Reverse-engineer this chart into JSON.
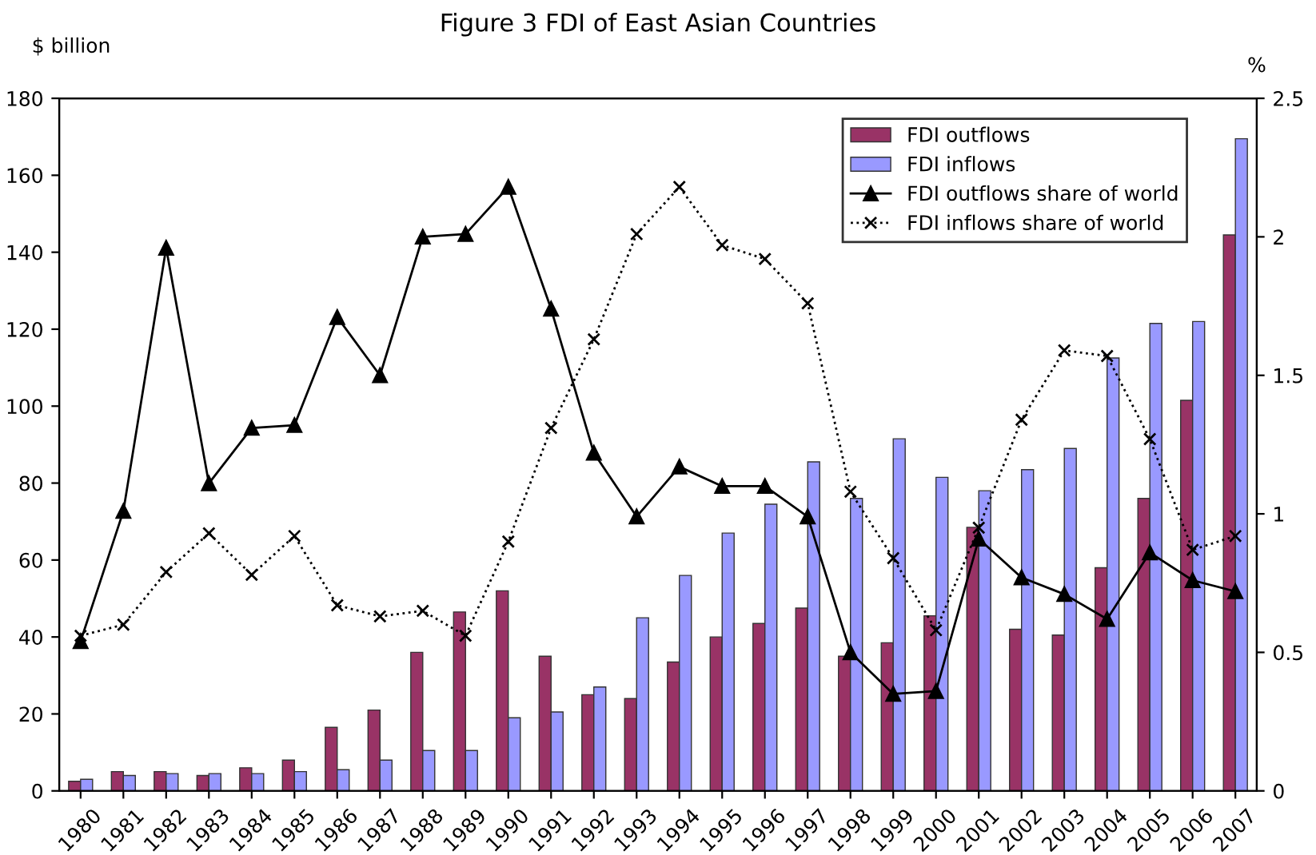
{
  "chart_data": {
    "type": "bar",
    "title": "Figure 3 FDI of East Asian Countries",
    "ylabel": "$ billion",
    "y2label": "%",
    "categories": [
      "1980",
      "1981",
      "1982",
      "1983",
      "1984",
      "1985",
      "1986",
      "1987",
      "1988",
      "1989",
      "1990",
      "1991",
      "1992",
      "1993",
      "1994",
      "1995",
      "1996",
      "1997",
      "1998",
      "1999",
      "2000",
      "2001",
      "2002",
      "2003",
      "2004",
      "2005",
      "2006",
      "2007"
    ],
    "series": [
      {
        "name": "FDI outflows",
        "color": "#993366",
        "values": [
          2.5,
          5,
          5,
          4,
          6,
          8,
          16.5,
          21,
          36,
          46.5,
          52,
          35,
          25,
          24,
          33.5,
          40,
          43.5,
          47.5,
          35,
          38.5,
          45.5,
          68.5,
          42,
          40.5,
          58,
          76,
          101.5,
          144.5
        ]
      },
      {
        "name": "FDI inflows",
        "color": "#9999ff",
        "values": [
          3,
          4,
          4.5,
          4.5,
          4.5,
          5,
          5.5,
          8,
          10.5,
          10.5,
          19,
          20.5,
          27,
          45,
          56,
          67,
          74.5,
          85.5,
          76,
          91.5,
          81.5,
          78,
          83.5,
          89,
          112.5,
          121.5,
          122,
          169.5
        ]
      },
      {
        "name": "FDI outflows share of world",
        "type": "line",
        "axis": "y2",
        "color": "#000000",
        "marker": "triangle",
        "line_style": "solid",
        "values": [
          0.54,
          1.01,
          1.96,
          1.11,
          1.31,
          1.32,
          1.71,
          1.5,
          2.0,
          2.01,
          2.18,
          1.74,
          1.22,
          0.99,
          1.17,
          1.1,
          1.1,
          0.99,
          0.5,
          0.35,
          0.36,
          0.91,
          0.77,
          0.71,
          0.62,
          0.86,
          0.76,
          0.72
        ]
      },
      {
        "name": "FDI inflows share of world",
        "type": "line",
        "axis": "y2",
        "color": "#000000",
        "marker": "cross",
        "line_style": "dotted",
        "values": [
          0.56,
          0.6,
          0.79,
          0.93,
          0.78,
          0.92,
          0.67,
          0.63,
          0.65,
          0.56,
          0.9,
          1.31,
          1.63,
          2.01,
          2.18,
          1.97,
          1.92,
          1.76,
          1.08,
          0.84,
          0.58,
          0.95,
          1.34,
          1.59,
          1.57,
          1.27,
          0.87,
          0.92
        ]
      }
    ],
    "ylim": [
      0,
      180
    ],
    "yticks": [
      0,
      20,
      40,
      60,
      80,
      100,
      120,
      140,
      160,
      180
    ],
    "y2lim": [
      0,
      2.5
    ],
    "y2ticks": [
      0,
      0.5,
      1,
      1.5,
      2,
      2.5
    ],
    "grid": false,
    "legend": "top right"
  }
}
